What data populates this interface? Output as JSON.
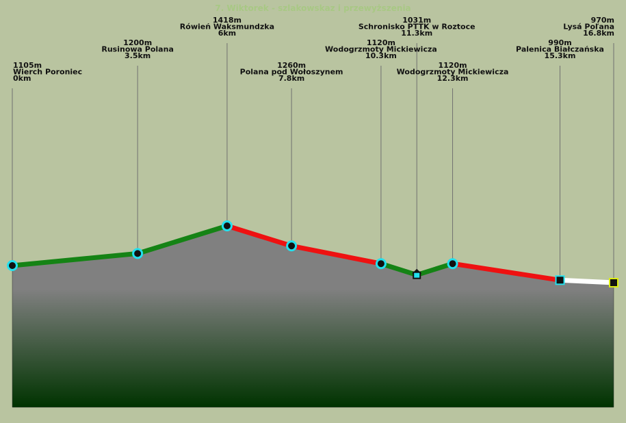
{
  "chart_data": {
    "type": "area",
    "title": "7. Wiktorek - szlakowskaz i przewyższenia",
    "xlabel": "",
    "ylabel": "",
    "x_unit": "km",
    "y_unit": "m",
    "points": [
      {
        "name": "Wierch Poroniec",
        "km": 0,
        "elev": 1105,
        "elev_label": "1105m",
        "km_label": "0km",
        "marker": "circle"
      },
      {
        "name": "Rusinowa Polana",
        "km": 3.5,
        "elev": 1200,
        "elev_label": "1200m",
        "km_label": "3.5km",
        "marker": "circle"
      },
      {
        "name": "Rówień Waksmundzka",
        "km": 6,
        "elev": 1418,
        "elev_label": "1418m",
        "km_label": "6km",
        "marker": "circle"
      },
      {
        "name": "Polana pod Wołoszynem",
        "km": 7.8,
        "elev": 1260,
        "elev_label": "1260m",
        "km_label": "7.8km",
        "marker": "circle"
      },
      {
        "name": "Wodogrzmoty Mickiewicza",
        "km": 10.3,
        "elev": 1120,
        "elev_label": "1120m",
        "km_label": "10.3km",
        "marker": "circle"
      },
      {
        "name": "Schronisko PTTK w Roztoce",
        "km": 11.3,
        "elev": 1031,
        "elev_label": "1031m",
        "km_label": "11.3km",
        "marker": "hut"
      },
      {
        "name": "Wodogrzmoty Mickiewicza",
        "km": 12.3,
        "elev": 1120,
        "elev_label": "1120m",
        "km_label": "12.3km",
        "marker": "circle"
      },
      {
        "name": "Palenica Białczańska",
        "km": 15.3,
        "elev": 990,
        "elev_label": "990m",
        "km_label": "15.3km",
        "marker": "square"
      },
      {
        "name": "Lysá Poľana",
        "km": 16.8,
        "elev": 970,
        "elev_label": "970m",
        "km_label": "16.8km",
        "marker": "square-end"
      }
    ],
    "segments": [
      {
        "from": 0,
        "to": 1,
        "color": "#158315"
      },
      {
        "from": 1,
        "to": 2,
        "color": "#158315"
      },
      {
        "from": 2,
        "to": 3,
        "color": "#ee1111"
      },
      {
        "from": 3,
        "to": 4,
        "color": "#ee1111"
      },
      {
        "from": 4,
        "to": 5,
        "color": "#158315"
      },
      {
        "from": 5,
        "to": 6,
        "color": "#158315"
      },
      {
        "from": 6,
        "to": 7,
        "color": "#ee1111"
      },
      {
        "from": 7,
        "to": 8,
        "color": "#ffffff"
      }
    ],
    "x_range": [
      0,
      16.8
    ],
    "colors": {
      "background": "#b9c4a0",
      "area_top": "#808080",
      "area_bottom": "#003300",
      "marker_ring": "#22e0ee",
      "end_marker_fill": "#ddee11"
    }
  }
}
